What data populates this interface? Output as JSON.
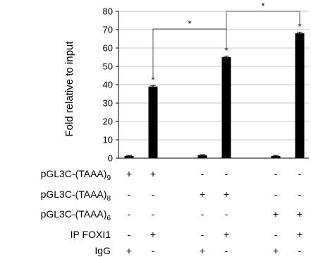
{
  "chart_data": {
    "type": "bar",
    "ylabel": "Fold relative to input",
    "ylim": [
      0,
      80
    ],
    "yticks": [
      0,
      10,
      20,
      30,
      40,
      50,
      60,
      70,
      80
    ],
    "grid": true,
    "values": [
      1.2,
      39,
      1.6,
      55,
      1.2,
      68
    ],
    "error": [
      0.3,
      0.6,
      0.3,
      0.6,
      0.3,
      0.6
    ],
    "bar_color": "#000000",
    "bar_annotations": [
      "",
      "*",
      "",
      "*",
      "",
      "*"
    ],
    "brackets": [
      {
        "from": 1,
        "to": 3,
        "label": "*"
      },
      {
        "from": 3,
        "to": 5,
        "label": "*"
      }
    ],
    "condition_rows": [
      {
        "base": "pGL3C-(TAAA)",
        "sub": "9",
        "label": "",
        "signs": [
          "+",
          "+",
          "-",
          "-",
          "-",
          "-"
        ]
      },
      {
        "base": "pGL3C-(TAAA)",
        "sub": "8",
        "label": "",
        "signs": [
          "-",
          "-",
          "+",
          "+",
          "-",
          "-"
        ]
      },
      {
        "base": "pGL3C-(TAAA)",
        "sub": "6",
        "label": "",
        "signs": [
          "-",
          "-",
          "-",
          "-",
          "+",
          "+"
        ]
      },
      {
        "base": "",
        "sub": "",
        "label": "IP FOXI1",
        "signs": [
          "-",
          "+",
          "-",
          "+",
          "-",
          "+"
        ]
      },
      {
        "base": "",
        "sub": "",
        "label": "IgG",
        "signs": [
          "+",
          "-",
          "+",
          "-",
          "+",
          "-"
        ]
      }
    ]
  }
}
